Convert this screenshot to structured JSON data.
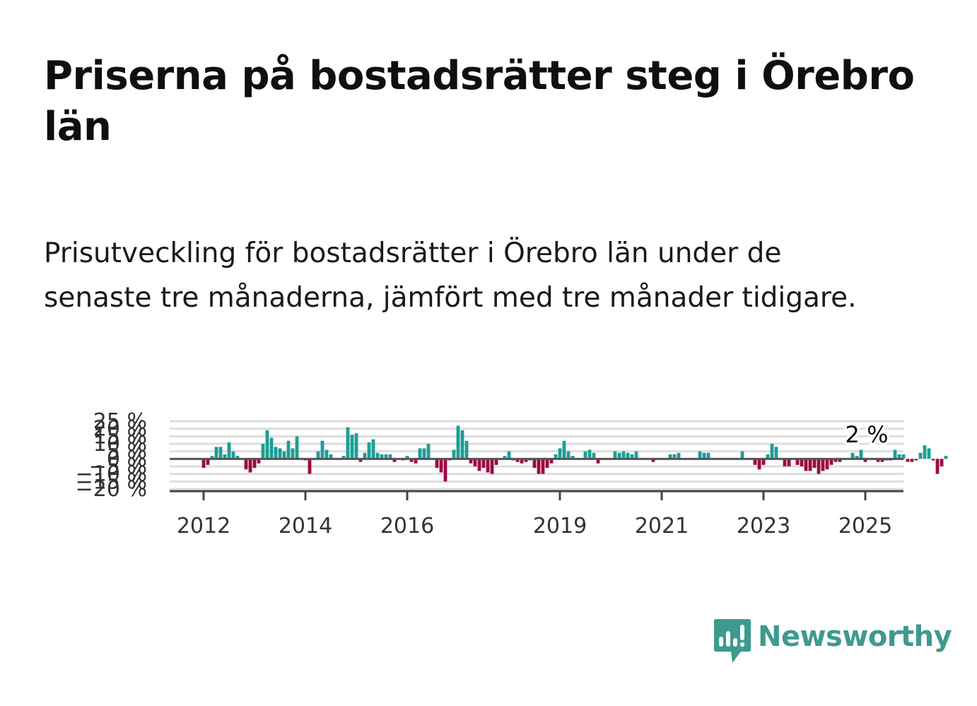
{
  "title": "Priserna på bostadsrätter steg i Örebro län",
  "subtitle": "Prisutveckling för bostadsrätter i Örebro län under de senaste tre månaderna, jämfört med tre månader tidigare.",
  "brand": {
    "name": "Newsworthy",
    "color": "#3d9a8f",
    "icon": "bar-chart-speech-bubble-icon"
  },
  "colors": {
    "positive": "#1b9e96",
    "negative": "#9b0a43",
    "grid": "#dddddd",
    "zero_line": "#555555",
    "axis": "#444444"
  },
  "chart_data": {
    "type": "bar",
    "title": "",
    "xlabel": "",
    "ylabel": "",
    "ylim": [
      -20,
      25
    ],
    "y_ticks": [
      -20,
      -15,
      -10,
      -5,
      0,
      5,
      10,
      15,
      20,
      25
    ],
    "y_tick_labels": [
      "−20 %",
      "−15 %",
      "−10 %",
      "−5 %",
      "0 %",
      "5 %",
      "10 %",
      "15 %",
      "20 %",
      "25 %"
    ],
    "x_ticks": [
      2012,
      2014,
      2016,
      2019,
      2021,
      2023,
      2025
    ],
    "x_tick_labels": [
      "2012",
      "2014",
      "2016",
      "2019",
      "2021",
      "2023",
      "2025"
    ],
    "grid": true,
    "last_value_label": "2 %",
    "x_start": "2012-01",
    "values": [
      -6,
      -4,
      2,
      8,
      8,
      3,
      11,
      5,
      2,
      0,
      -7,
      -9,
      -6,
      -3,
      10,
      19,
      14,
      8,
      7,
      5,
      12,
      7,
      15,
      0,
      -1,
      -10,
      0,
      5,
      12,
      6,
      3,
      0,
      0,
      2,
      21,
      16,
      17,
      -2,
      4,
      11,
      13,
      4,
      3,
      3,
      3,
      -2,
      0,
      -1,
      2,
      -2,
      -3,
      7,
      7,
      10,
      0,
      -6,
      -9,
      -15,
      -1,
      6,
      22,
      19,
      12,
      -3,
      -5,
      -8,
      -6,
      -9,
      -10,
      -4,
      0,
      2,
      5,
      -1,
      -2,
      -3,
      -2,
      -1,
      -6,
      -10,
      -10,
      -6,
      -3,
      3,
      7,
      12,
      5,
      2,
      0,
      0,
      5,
      6,
      4,
      -3,
      0,
      0,
      0,
      5,
      4,
      5,
      4,
      3,
      5,
      0,
      0,
      0,
      -2,
      0,
      0,
      0,
      3,
      3,
      4,
      0,
      0,
      0,
      0,
      5,
      4,
      4,
      0,
      0,
      0,
      0,
      0,
      0,
      0,
      5,
      0,
      0,
      -4,
      -7,
      -4,
      3,
      10,
      8,
      0,
      -5,
      -5,
      0,
      -4,
      -5,
      -8,
      -8,
      -6,
      -10,
      -8,
      -7,
      -4,
      -2,
      -2,
      0,
      0,
      4,
      2,
      6,
      -2,
      0,
      0,
      -2,
      -2,
      -1,
      -1,
      6,
      3,
      3,
      -2,
      -2,
      -1,
      4,
      9,
      7,
      -1,
      -10,
      -5,
      2
    ]
  }
}
